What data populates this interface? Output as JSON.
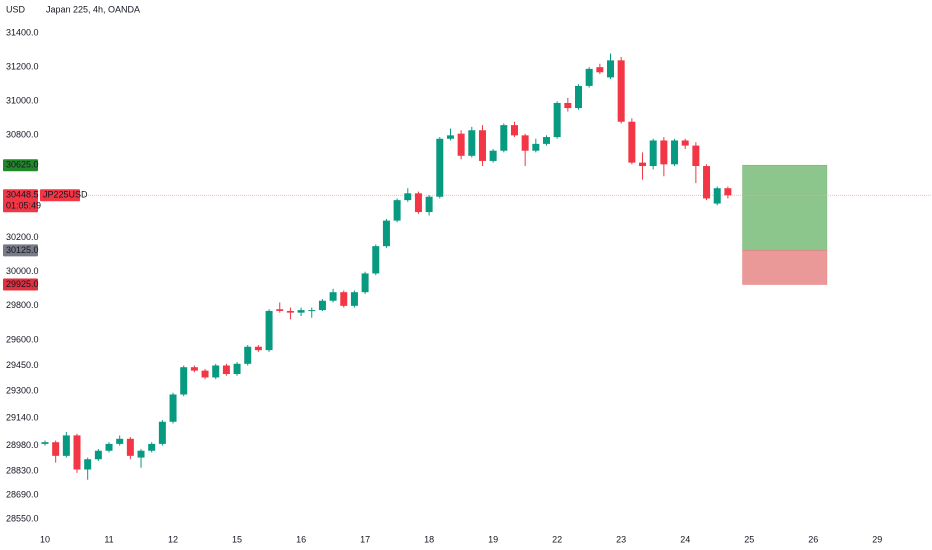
{
  "chart_data": {
    "type": "candlestick",
    "currency": "USD",
    "title": "Japan 225, 4h, OANDA",
    "up_color": "#089981",
    "down_color": "#f23645",
    "grid": false,
    "categories": [
      "10",
      null,
      null,
      null,
      null,
      null,
      "11",
      null,
      null,
      null,
      null,
      null,
      "12",
      null,
      null,
      null,
      null,
      null,
      "15",
      null,
      null,
      null,
      null,
      null,
      "16",
      null,
      null,
      null,
      null,
      null,
      "17",
      null,
      null,
      null,
      null,
      null,
      "18",
      null,
      null,
      null,
      null,
      null,
      "19",
      null,
      null,
      null,
      null,
      null,
      "22",
      null,
      null,
      null,
      null,
      null,
      "23",
      null,
      null,
      null,
      null,
      null,
      "24",
      null,
      null,
      null,
      null,
      null,
      "25",
      null,
      null,
      null,
      null,
      null,
      "26",
      null,
      null,
      null,
      null,
      null,
      "29",
      null,
      null,
      null,
      null,
      null
    ],
    "open": [
      28990,
      29000,
      28920,
      29040,
      28840,
      28900,
      28950,
      28990,
      29020,
      28910,
      28950,
      28990,
      29120,
      29280,
      29440,
      29420,
      29380,
      29450,
      29400,
      29460,
      29560,
      29540,
      29780,
      29770,
      29760,
      29770,
      29775,
      29830,
      29880,
      29800,
      29880,
      29990,
      30150,
      30300,
      30420,
      30460,
      30350,
      30440,
      30780,
      30810,
      30680,
      30830,
      30650,
      30710,
      30860,
      30800,
      30710,
      30750,
      30790,
      30990,
      30960,
      31090,
      31200,
      31140,
      31240,
      30880,
      30640,
      30620,
      30770,
      30630,
      30770,
      30740,
      30620,
      30400,
      30490,
      null,
      null,
      null,
      null,
      null,
      null,
      null,
      null,
      null,
      null,
      null,
      null,
      null,
      null,
      null,
      null,
      null,
      null,
      null
    ],
    "high": [
      29010,
      29010,
      29060,
      29050,
      28910,
      28960,
      29000,
      29040,
      29030,
      28960,
      29000,
      29130,
      29290,
      29450,
      29450,
      29430,
      29460,
      29460,
      29470,
      29570,
      29570,
      29780,
      29820,
      29790,
      29790,
      29790,
      29840,
      29900,
      29890,
      29890,
      30000,
      30160,
      30310,
      30430,
      30490,
      30470,
      30450,
      30790,
      30840,
      30830,
      30850,
      30860,
      30720,
      30870,
      30880,
      30810,
      30780,
      30800,
      31000,
      31020,
      31100,
      31200,
      31220,
      31280,
      31260,
      30900,
      30700,
      30780,
      30790,
      30780,
      30780,
      30760,
      30630,
      30500,
      30500,
      null,
      null,
      null,
      null,
      null,
      null,
      null,
      null,
      null,
      null,
      null,
      null,
      null,
      null,
      null,
      null,
      null,
      null,
      null
    ],
    "low": [
      28980,
      28880,
      28910,
      28820,
      28780,
      28890,
      28940,
      28980,
      28900,
      28850,
      28940,
      28980,
      29110,
      29270,
      29410,
      29370,
      29370,
      29390,
      29390,
      29450,
      29530,
      29530,
      29760,
      29720,
      29740,
      29730,
      29770,
      29820,
      29790,
      29790,
      29870,
      29980,
      30140,
      30290,
      30410,
      30340,
      30330,
      30430,
      30770,
      30660,
      30670,
      30620,
      30640,
      30700,
      30790,
      30620,
      30700,
      30740,
      30780,
      30940,
      30950,
      31080,
      31160,
      31130,
      30870,
      30630,
      30540,
      30600,
      30560,
      30620,
      30720,
      30520,
      30420,
      30390,
      30430,
      null,
      null,
      null,
      null,
      null,
      null,
      null,
      null,
      null,
      null,
      null,
      null,
      null,
      null,
      null,
      null,
      null,
      null,
      null
    ],
    "close": [
      29000,
      28920,
      29040,
      28840,
      28900,
      28950,
      28990,
      29020,
      28920,
      28950,
      28990,
      29120,
      29280,
      29440,
      29420,
      29380,
      29450,
      29400,
      29460,
      29560,
      29540,
      29770,
      29770,
      29760,
      29775,
      29775,
      29830,
      29880,
      29800,
      29880,
      29990,
      30150,
      30300,
      30420,
      30460,
      30350,
      30440,
      30780,
      30800,
      30680,
      30830,
      30650,
      30710,
      30860,
      30800,
      30710,
      30750,
      30790,
      30990,
      30960,
      31090,
      31190,
      31170,
      31240,
      30880,
      30640,
      30620,
      30770,
      30630,
      30770,
      30740,
      30620,
      30430,
      30490,
      30448.5,
      null,
      null,
      null,
      null,
      null,
      null,
      null,
      null,
      null,
      null,
      null,
      null,
      null,
      null,
      null,
      null,
      null,
      null,
      null
    ],
    "ylim": [
      28485,
      31594
    ],
    "yticks": [
      {
        "value": 31400,
        "label": "31400.0"
      },
      {
        "value": 31200,
        "label": "31200.0"
      },
      {
        "value": 31000,
        "label": "31000.0"
      },
      {
        "value": 30800,
        "label": "30800.0"
      },
      {
        "value": 30200,
        "label": "30200.0"
      },
      {
        "value": 30000,
        "label": "30000.0"
      },
      {
        "value": 29800,
        "label": "29800.0"
      },
      {
        "value": 29600,
        "label": "29600.0"
      },
      {
        "value": 29450,
        "label": "29450.0"
      },
      {
        "value": 29300,
        "label": "29300.0"
      },
      {
        "value": 29140,
        "label": "29140.0"
      },
      {
        "value": 28980,
        "label": "28980.0"
      },
      {
        "value": 28830,
        "label": "28830.0"
      },
      {
        "value": 28690,
        "label": "28690.0"
      },
      {
        "value": 28550,
        "label": "28550.0"
      }
    ],
    "last_price": 30448.5,
    "symbol": "JP225USD",
    "countdown": "01:05:49",
    "position": {
      "target": {
        "value": 30625,
        "label": "30625.0"
      },
      "entry": {
        "value": 30125,
        "label": "30125.0"
      },
      "stop": {
        "value": 29925,
        "label": "29925.0"
      }
    }
  }
}
